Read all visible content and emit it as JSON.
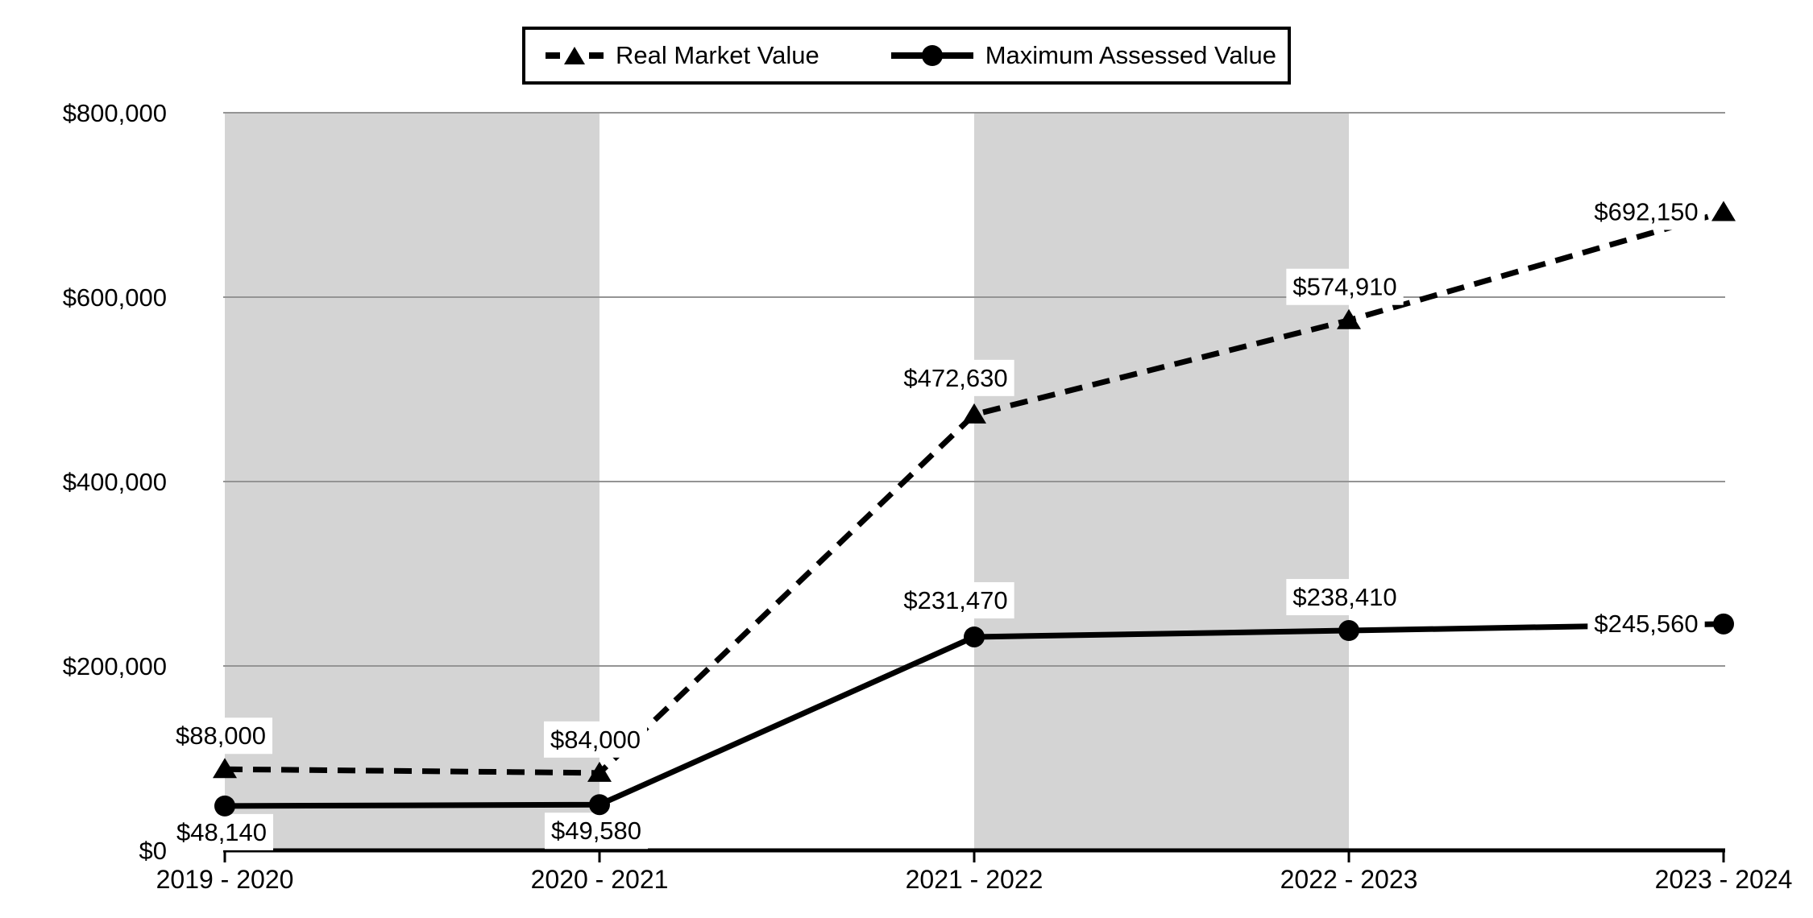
{
  "page": {
    "background": "#ffffff"
  },
  "chart_data": {
    "type": "line",
    "title": "",
    "xlabel": "",
    "ylabel": "",
    "categories": [
      "2019 - 2020",
      "2020 - 2021",
      "2021 - 2022",
      "2022 - 2023",
      "2023 - 2024"
    ],
    "series": [
      {
        "name": "Real Market Value",
        "line_style": "dashed",
        "marker": "triangle",
        "values": [
          88000,
          84000,
          472630,
          574910,
          692150
        ],
        "data_labels": [
          "$88,000",
          "$84,000",
          "$472,630",
          "$574,910",
          "$692,150"
        ],
        "label_placements": [
          "above",
          "above",
          "above-left",
          "above",
          "left"
        ]
      },
      {
        "name": "Maximum Assessed Value",
        "line_style": "solid",
        "marker": "circle",
        "values": [
          48140,
          49580,
          231470,
          238410,
          245560
        ],
        "data_labels": [
          "$48,140",
          "$49,580",
          "$231,470",
          "$238,410",
          "$245,560"
        ],
        "label_placements": [
          "below",
          "below",
          "above-left",
          "above",
          "left"
        ]
      }
    ],
    "ylim": [
      0,
      800000
    ],
    "yticks": [
      {
        "value": 0,
        "label": "$0"
      },
      {
        "value": 200000,
        "label": "$200,000"
      },
      {
        "value": 400000,
        "label": "$400,000"
      },
      {
        "value": 600000,
        "label": "$600,000"
      },
      {
        "value": 800000,
        "label": "$800,000"
      }
    ],
    "grid": "horizontal",
    "legend_position": "top-center",
    "shaded_spans": [
      [
        0,
        1
      ],
      [
        2,
        3
      ]
    ],
    "colors": {
      "line": "#000000",
      "band": "#d4d4d4",
      "gridline": "#949494",
      "axis": "#000000",
      "label_background": "#ffffff",
      "text": "#000000"
    }
  }
}
